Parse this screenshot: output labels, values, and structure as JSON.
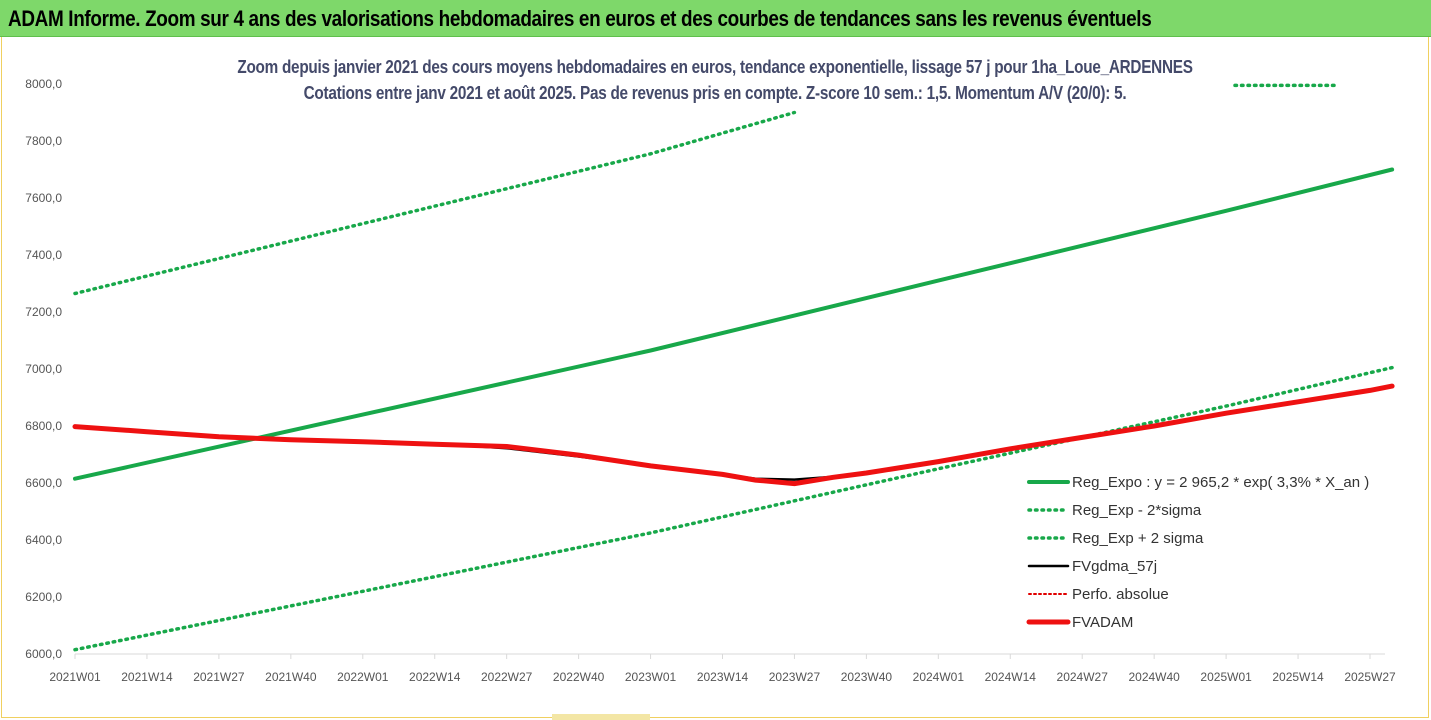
{
  "banner": {
    "title": "ADAM Informe. Zoom sur 4 ans des valorisations hebdomadaires en euros et des courbes de tendances sans les revenus éventuels"
  },
  "colors": {
    "banner": "#7ed86a",
    "trend": "#18a84a",
    "band": "#18a84a",
    "fvgdma": "#000000",
    "perfo": "#e00000",
    "fvadam": "#ee1111"
  },
  "chart_data": {
    "type": "line",
    "title_line1": "Zoom depuis janvier 2021 des cours moyens hebdomadaires en euros, tendance exponentielle, lissage 57 j pour 1ha_Loue_ARDENNES",
    "title_line2": "Cotations entre janv 2021 et août 2025.  Pas de revenus pris en compte. Z-score 10 sem.: 1,5. Momentum A/V (20/0): 5.",
    "xlabel": "",
    "ylabel": "",
    "ylim": [
      6000,
      8000
    ],
    "y_ticks": [
      "6000,0",
      "6200,0",
      "6400,0",
      "6600,0",
      "6800,0",
      "7000,0",
      "7200,0",
      "7400,0",
      "7600,0",
      "7800,0",
      "8000,0"
    ],
    "x_ticks": [
      "2021W01",
      "2021W14",
      "2021W27",
      "2021W40",
      "2022W01",
      "2022W14",
      "2022W27",
      "2022W40",
      "2023W01",
      "2023W14",
      "2023W27",
      "2023W40",
      "2024W01",
      "2024W14",
      "2024W27",
      "2024W40",
      "2025W01",
      "2025W14",
      "2025W27"
    ],
    "grid": false,
    "legend_position": "bottom-right",
    "series": [
      {
        "name": "Reg_Expo : y = 2 965,2 * exp( 3,3% *  X_an )",
        "style": "solid-thick",
        "x": [
          "2021W01",
          "2022W01",
          "2023W01",
          "2024W01",
          "2025W01",
          "2025W31"
        ],
        "values": [
          6615,
          6840,
          7065,
          7310,
          7555,
          7700
        ]
      },
      {
        "name": "Reg_Exp - 2*sigma",
        "style": "dotted",
        "x": [
          "2021W01",
          "2022W01",
          "2023W01",
          "2024W01",
          "2025W01",
          "2025W31"
        ],
        "values": [
          6015,
          6220,
          6425,
          6650,
          6870,
          7005
        ]
      },
      {
        "name": "Reg_Exp + 2 sigma",
        "style": "dotted",
        "x": [
          "2021W01",
          "2022W01",
          "2023W01",
          "2023W27"
        ],
        "values": [
          7265,
          7510,
          7755,
          7900
        ]
      },
      {
        "name": "FVgdma_57j",
        "style": "solid-thin",
        "x": [
          "2021W01",
          "2021W14",
          "2021W27",
          "2021W40",
          "2022W01",
          "2022W14",
          "2022W27",
          "2022W40",
          "2023W01",
          "2023W14",
          "2023W20",
          "2023W27",
          "2023W34",
          "2023W40",
          "2024W01",
          "2024W14",
          "2024W27",
          "2024W40",
          "2025W01",
          "2025W14",
          "2025W27",
          "2025W31"
        ],
        "values": [
          6798,
          6780,
          6762,
          6752,
          6745,
          6738,
          6722,
          6693,
          6660,
          6630,
          6615,
          6612,
          6622,
          6635,
          6675,
          6720,
          6760,
          6800,
          6845,
          6885,
          6925,
          6938
        ]
      },
      {
        "name": "Perfo. absolue",
        "style": "dotted-red",
        "x": [],
        "values": []
      },
      {
        "name": "FVADAM",
        "style": "solid-thick-red",
        "x": [
          "2021W01",
          "2021W14",
          "2021W27",
          "2021W40",
          "2022W01",
          "2022W14",
          "2022W27",
          "2022W40",
          "2023W01",
          "2023W14",
          "2023W20",
          "2023W27",
          "2023W34",
          "2023W40",
          "2024W01",
          "2024W14",
          "2024W27",
          "2024W40",
          "2025W01",
          "2025W14",
          "2025W27",
          "2025W31"
        ],
        "values": [
          6798,
          6780,
          6762,
          6752,
          6745,
          6736,
          6728,
          6698,
          6660,
          6630,
          6610,
          6598,
          6620,
          6635,
          6675,
          6720,
          6760,
          6800,
          6845,
          6885,
          6925,
          6940
        ]
      }
    ]
  }
}
